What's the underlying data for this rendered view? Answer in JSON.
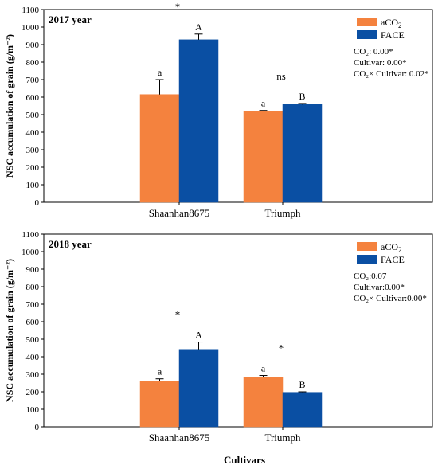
{
  "colors": {
    "aCO2": "#F4823E",
    "FACE": "#0A4FA3",
    "axis": "#000000",
    "background": "#FFFFFF"
  },
  "shared": {
    "ylabel": "NSC accumulation of grain (g/m⁻²)",
    "xlabel": "Cultivars"
  },
  "chart_data": [
    {
      "type": "bar",
      "title": "2017 year",
      "categories": [
        "Shaanhan8675",
        "Triumph"
      ],
      "ylim": [
        0,
        1100
      ],
      "yticks": [
        0,
        100,
        200,
        300,
        400,
        500,
        600,
        700,
        800,
        900,
        1000,
        1100
      ],
      "ylabel": "NSC accumulation of grain (g/m⁻²)",
      "xlabel": "",
      "legend_position": "top-right",
      "series": [
        {
          "name": "aCO2",
          "values": [
            615,
            520
          ],
          "errors": [
            85,
            4
          ],
          "letters": [
            "a",
            "a"
          ]
        },
        {
          "name": "FACE",
          "values": [
            928,
            558
          ],
          "errors": [
            32,
            6
          ],
          "letters": [
            "A",
            "B"
          ]
        }
      ],
      "significance": [
        "*",
        "ns"
      ],
      "stats": [
        "CO₂: 0.00*",
        "Cultivar: 0.00*",
        "CO₂× Cultivar: 0.02*"
      ]
    },
    {
      "type": "bar",
      "title": "2018 year",
      "categories": [
        "Shaanhan8675",
        "Triumph"
      ],
      "ylim": [
        0,
        1100
      ],
      "yticks": [
        0,
        100,
        200,
        300,
        400,
        500,
        600,
        700,
        800,
        900,
        1000,
        1100
      ],
      "ylabel": "NSC accumulation of grain (g/m⁻²)",
      "xlabel": "Cultivars",
      "legend_position": "top-right",
      "series": [
        {
          "name": "aCO2",
          "values": [
            262,
            285
          ],
          "errors": [
            12,
            8
          ],
          "letters": [
            "a",
            "a"
          ]
        },
        {
          "name": "FACE",
          "values": [
            442,
            197
          ],
          "errors": [
            42,
            3
          ],
          "letters": [
            "A",
            "B"
          ]
        }
      ],
      "significance": [
        "*",
        "*"
      ],
      "stats": [
        "CO₂:0.07",
        "Cultivar:0.00*",
        "CO₂× Cultivar:0.00*"
      ]
    }
  ]
}
